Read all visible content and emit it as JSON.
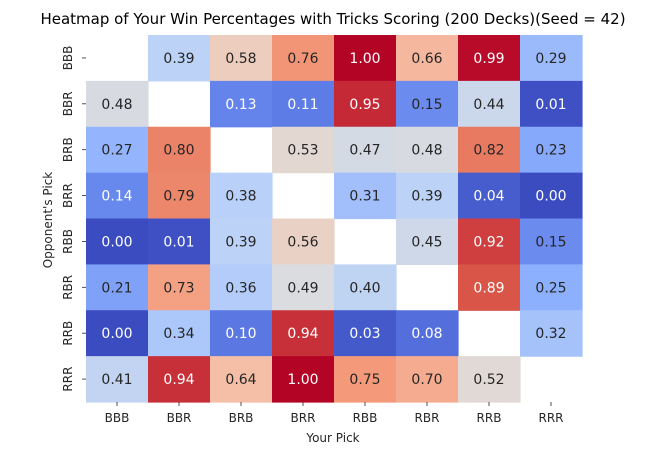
{
  "chart_data": {
    "type": "heatmap",
    "title": "Heatmap of Your Win Percentages with Tricks Scoring (200 Decks)(Seed = 42)",
    "xlabel": "Your Pick",
    "ylabel": "Opponent's Pick",
    "x_categories": [
      "BBB",
      "BBR",
      "BRB",
      "BRR",
      "RBB",
      "RBR",
      "RRB",
      "RRR"
    ],
    "y_categories": [
      "BBB",
      "BBR",
      "BRB",
      "BRR",
      "RBB",
      "RBR",
      "RRB",
      "RRR"
    ],
    "values": [
      [
        null,
        0.39,
        0.58,
        0.76,
        1.0,
        0.66,
        0.99,
        0.29
      ],
      [
        0.48,
        null,
        0.13,
        0.11,
        0.95,
        0.15,
        0.44,
        0.01
      ],
      [
        0.27,
        0.8,
        null,
        0.53,
        0.47,
        0.48,
        0.82,
        0.23
      ],
      [
        0.14,
        0.79,
        0.38,
        null,
        0.31,
        0.39,
        0.04,
        0.0
      ],
      [
        0.0,
        0.01,
        0.39,
        0.56,
        null,
        0.45,
        0.92,
        0.15
      ],
      [
        0.21,
        0.73,
        0.36,
        0.49,
        0.4,
        null,
        0.89,
        0.25
      ],
      [
        0.0,
        0.34,
        0.1,
        0.94,
        0.03,
        0.08,
        null,
        0.32
      ],
      [
        0.41,
        0.94,
        0.64,
        1.0,
        0.75,
        0.7,
        0.52,
        null
      ]
    ],
    "value_range": [
      0,
      1
    ],
    "colormap": "coolwarm",
    "colorbar": false,
    "grid": false,
    "annotations": true
  }
}
